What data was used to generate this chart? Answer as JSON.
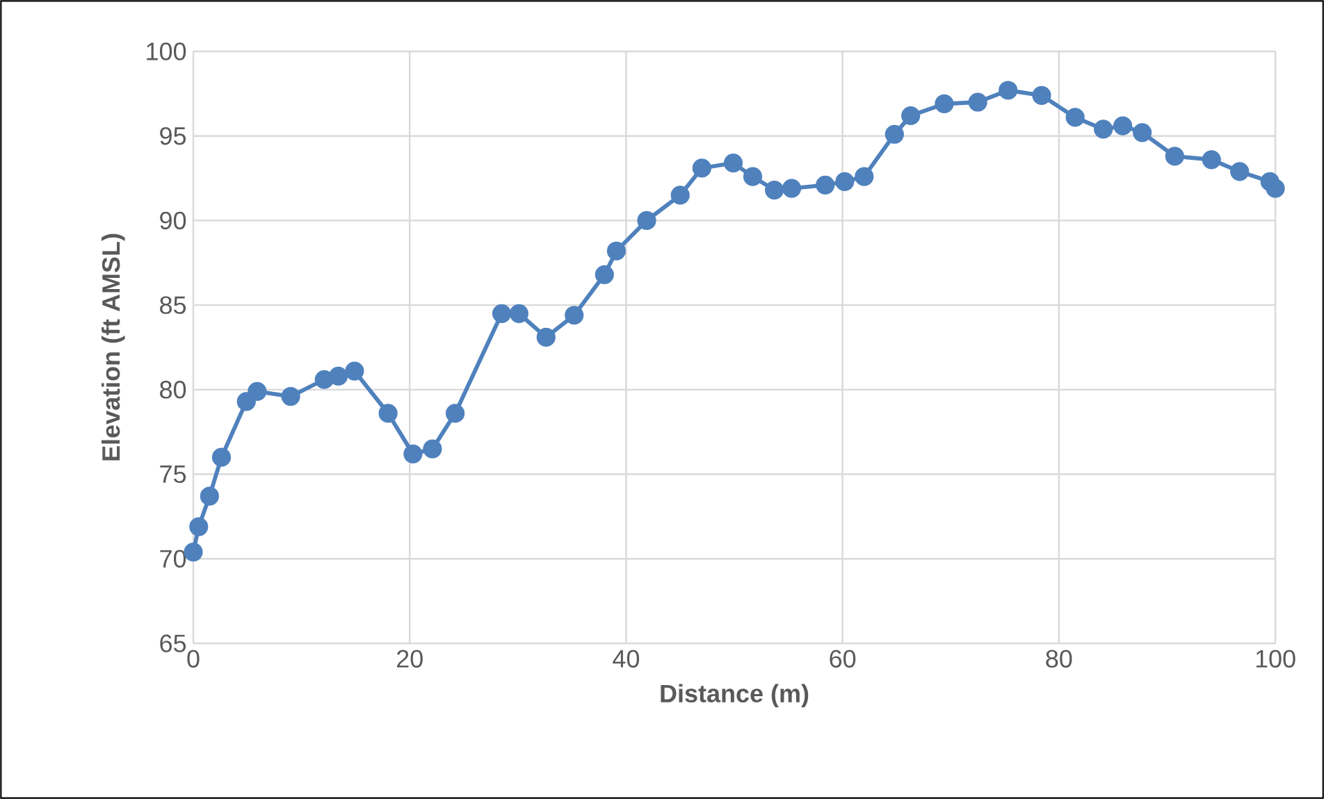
{
  "chart_data": {
    "type": "line",
    "xlabel": "Distance  (m)",
    "ylabel": "Elevation  (ft AMSL)",
    "x": [
      0,
      0.5,
      1.5,
      2.6,
      4.9,
      5.9,
      9.0,
      12.1,
      13.4,
      14.9,
      18.0,
      20.3,
      22.1,
      24.2,
      28.5,
      30.1,
      32.6,
      35.2,
      38.0,
      39.1,
      41.9,
      45.0,
      47.0,
      49.9,
      51.7,
      53.7,
      55.3,
      58.4,
      60.2,
      62.0,
      64.8,
      66.3,
      69.4,
      72.5,
      75.3,
      78.4,
      81.5,
      84.1,
      85.9,
      87.7,
      90.7,
      94.1,
      96.7,
      99.5,
      100
    ],
    "series": [
      {
        "color": "#4f81bd",
        "values": [
          70.4,
          71.9,
          73.7,
          76.0,
          79.3,
          79.9,
          79.6,
          80.6,
          80.8,
          81.1,
          78.6,
          76.2,
          76.5,
          78.6,
          84.5,
          84.5,
          83.1,
          84.4,
          86.8,
          88.2,
          90.0,
          91.5,
          93.1,
          93.4,
          92.6,
          91.8,
          91.9,
          92.1,
          92.3,
          92.6,
          95.1,
          96.2,
          96.9,
          97.0,
          97.7,
          97.4,
          96.1,
          95.4,
          95.6,
          95.2,
          93.8,
          93.6,
          92.9,
          92.3,
          91.9
        ]
      }
    ],
    "xlim": [
      0,
      100
    ],
    "xticks": [
      0,
      20,
      40,
      60,
      80,
      100
    ],
    "ylim": [
      65,
      100
    ],
    "yticks": [
      65,
      70,
      75,
      80,
      85,
      90,
      95,
      100
    ],
    "grid": true,
    "marker": "circle",
    "line_style": "solid"
  }
}
